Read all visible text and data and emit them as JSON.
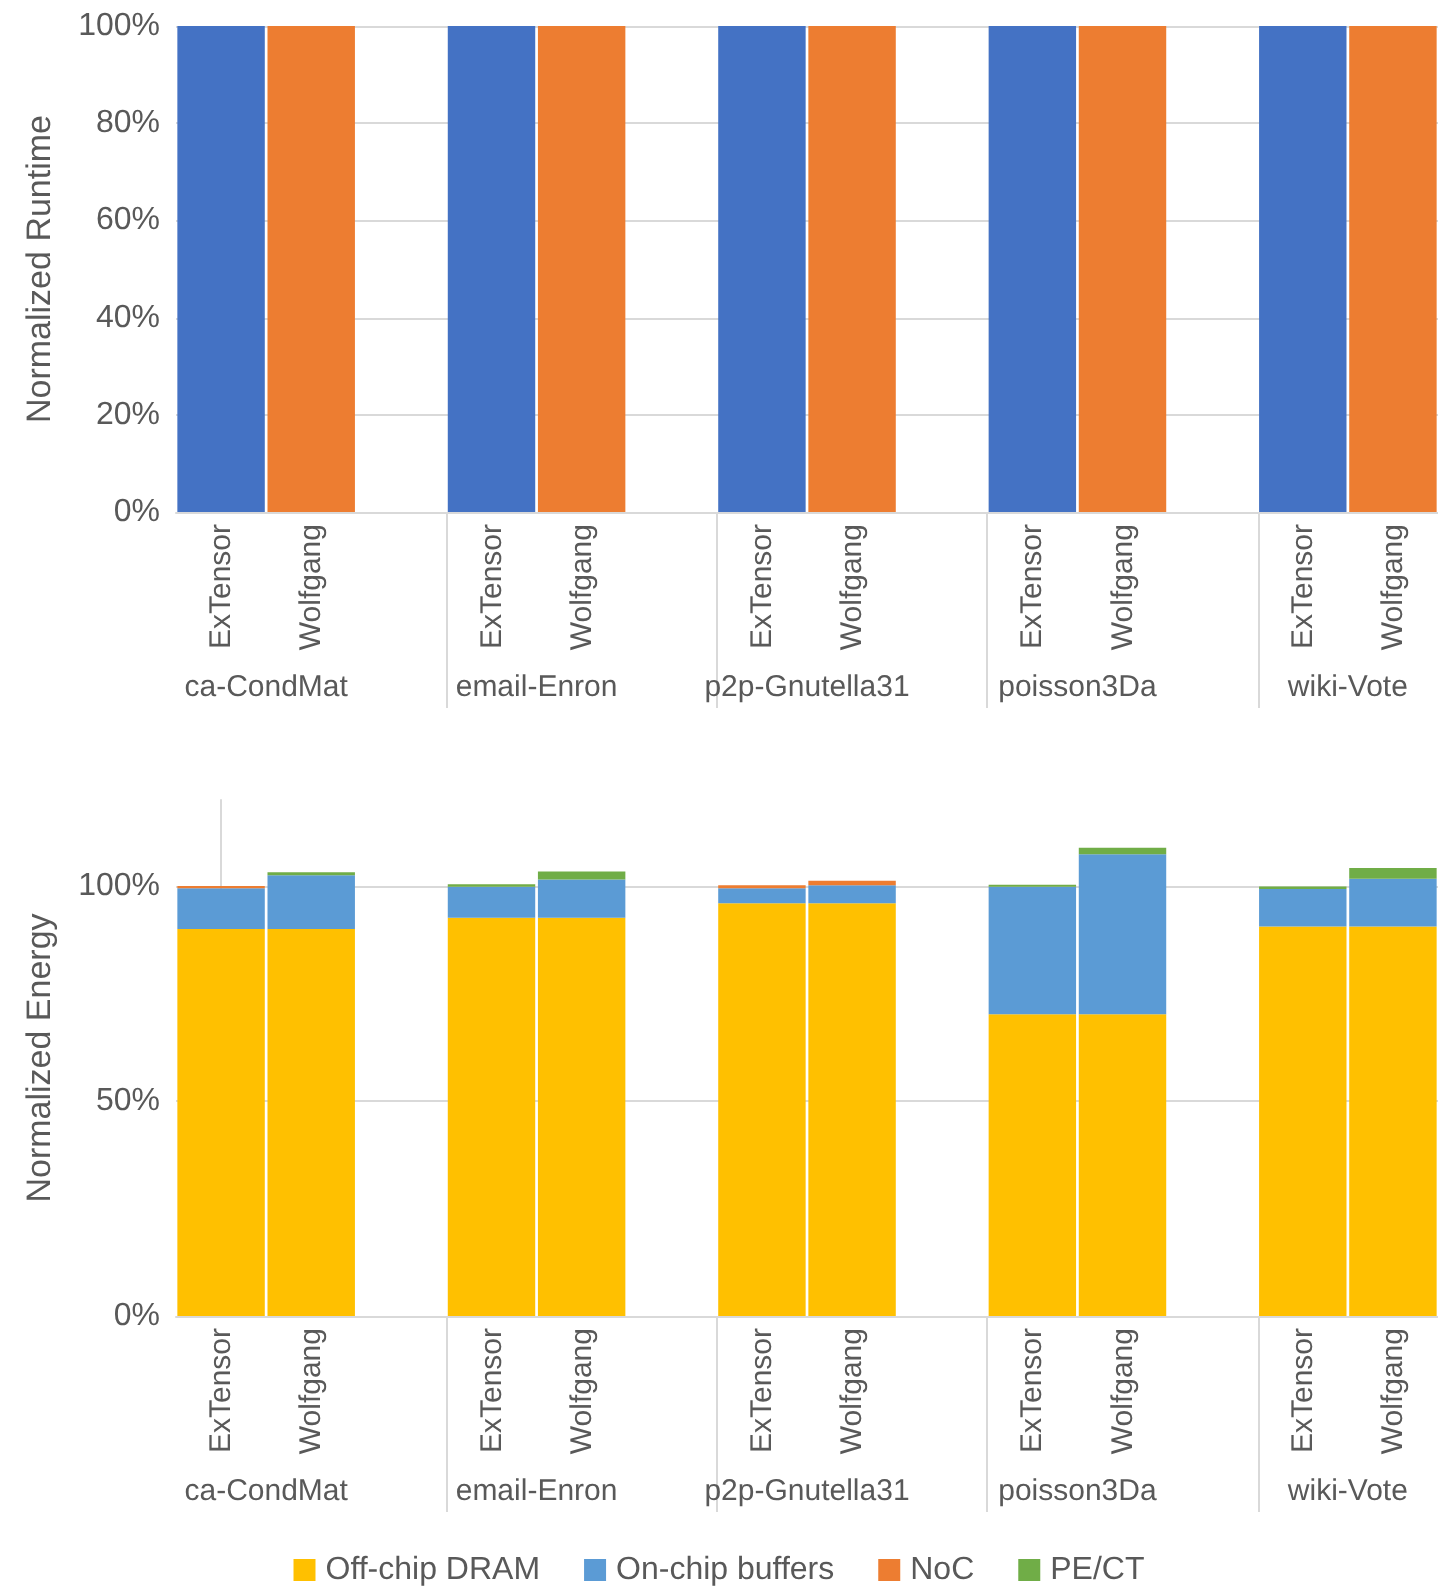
{
  "chart_data": [
    {
      "type": "bar",
      "ylabel": "Normalized Runtime",
      "categories": [
        "ExTensor",
        "Wolfgang",
        null,
        "ExTensor",
        "Wolfgang",
        null,
        "ExTensor",
        "Wolfgang",
        null,
        "ExTensor",
        "Wolfgang",
        null,
        "ExTensor",
        "Wolfgang"
      ],
      "values": [
        100,
        100,
        null,
        100,
        100,
        null,
        100,
        100,
        null,
        100,
        100,
        null,
        100,
        100
      ],
      "colors": [
        "#4472c4",
        "#ed7d31",
        null,
        "#4472c4",
        "#ed7d31",
        null,
        "#4472c4",
        "#ed7d31",
        null,
        "#4472c4",
        "#ed7d31",
        null,
        "#4472c4",
        "#ed7d31"
      ],
      "annotations": [
        "ca-CondMat",
        "email-Enron",
        "p2p-Gnutella31",
        "poisson3Da",
        "wiki-Vote"
      ],
      "ylim": [
        0,
        100
      ],
      "yticks": [
        {
          "value": 0,
          "label": "0%"
        },
        {
          "value": 20,
          "label": "20%"
        },
        {
          "value": 40,
          "label": "40%"
        },
        {
          "value": 60,
          "label": "60%"
        },
        {
          "value": 80,
          "label": "80%"
        },
        {
          "value": 100,
          "label": "100%"
        }
      ],
      "grid": "y",
      "legend": false
    },
    {
      "type": "bar",
      "ylabel": "Normalized Energy",
      "stacked": true,
      "categories": [
        "ExTensor",
        "Wolfgang",
        null,
        "ExTensor",
        "Wolfgang",
        null,
        "ExTensor",
        "Wolfgang",
        null,
        "ExTensor",
        "Wolfgang",
        null,
        "ExTensor",
        "Wolfgang"
      ],
      "series": [
        {
          "name": "Off-chip DRAM",
          "color": "#ffc000",
          "values": [
            90,
            90,
            null,
            92.6,
            92.6,
            null,
            96,
            96,
            null,
            70.2,
            70.2,
            null,
            90.6,
            90.6
          ]
        },
        {
          "name": "On-chip buffers",
          "color": "#5b9bd5",
          "values": [
            9.5,
            12.5,
            null,
            7.2,
            8.9,
            null,
            3.5,
            4.2,
            null,
            29.6,
            37.2,
            null,
            8.7,
            11.1
          ]
        },
        {
          "name": "NoC",
          "color": "#ed7d31",
          "values": [
            0.5,
            null,
            null,
            null,
            null,
            null,
            0.7,
            1.0,
            null,
            null,
            null,
            null,
            null,
            null
          ]
        },
        {
          "name": "PE/CT",
          "color": "#70ad47",
          "values": [
            null,
            0.7,
            null,
            0.6,
            1.9,
            null,
            null,
            null,
            null,
            0.5,
            1.5,
            null,
            0.6,
            2.5
          ]
        }
      ],
      "annotations": [
        "ca-CondMat",
        "email-Enron",
        "p2p-Gnutella31",
        "poisson3Da",
        "wiki-Vote"
      ],
      "ylim": [
        0,
        120
      ],
      "yticks": [
        {
          "value": 0,
          "label": "0%"
        },
        {
          "value": 50,
          "label": "50%"
        },
        {
          "value": 100,
          "label": "100%"
        }
      ],
      "grid": "y",
      "legend": "bottom"
    }
  ]
}
